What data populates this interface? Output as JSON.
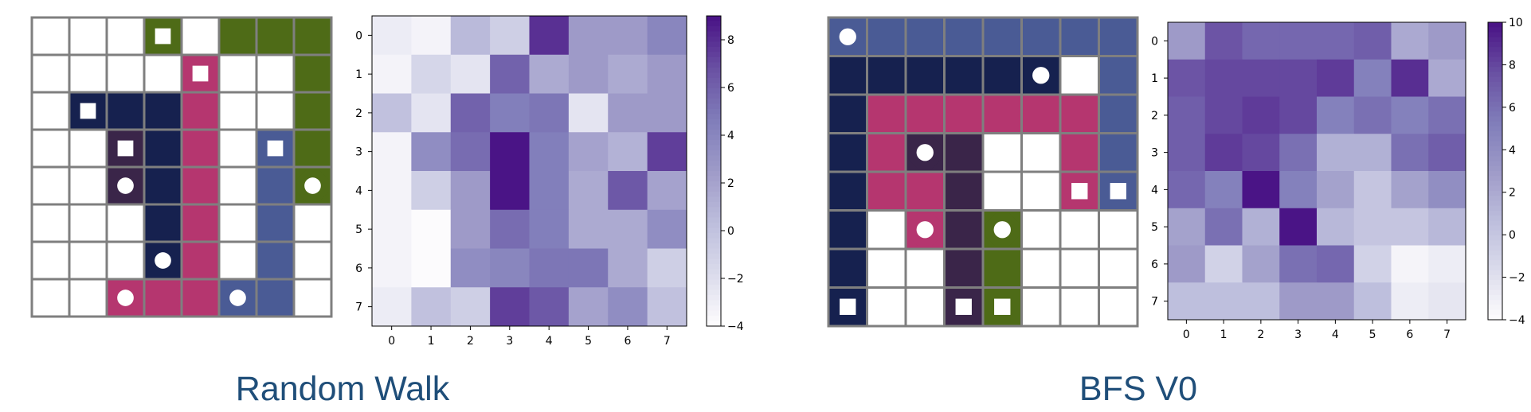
{
  "colors": {
    "empty": "#ffffff",
    "grid_line": "#7f7f7f",
    "title": "#1f4e79",
    "cmap": [
      "#fcfbfd",
      "#dadaeb",
      "#bcbddc",
      "#9e9ac8",
      "#807dba",
      "#6a51a3",
      "#4a1486"
    ]
  },
  "panels": [
    {
      "title": "Random Walk",
      "path_colors": {
        "O": "#4e6b17",
        "M": "#b5366f",
        "N": "#16214f",
        "P": "#3a2549",
        "S": "#4a5b95"
      },
      "grid": [
        "...O.OOO",
        "....M..O",
        ".NNNM..O",
        "..PNM.SO",
        "..PNM.SO",
        "...NM.S.",
        "...NM.S.",
        "..MMMSS."
      ],
      "markers": [
        {
          "row": 0,
          "col": 3,
          "shape": "square",
          "color": "O"
        },
        {
          "row": 1,
          "col": 4,
          "shape": "square",
          "color": "M"
        },
        {
          "row": 2,
          "col": 1,
          "shape": "square",
          "color": "N"
        },
        {
          "row": 3,
          "col": 2,
          "shape": "square",
          "color": "P"
        },
        {
          "row": 3,
          "col": 6,
          "shape": "square",
          "color": "S"
        },
        {
          "row": 4,
          "col": 2,
          "shape": "circle",
          "color": "P"
        },
        {
          "row": 4,
          "col": 7,
          "shape": "circle",
          "color": "O"
        },
        {
          "row": 6,
          "col": 3,
          "shape": "circle",
          "color": "N"
        },
        {
          "row": 7,
          "col": 2,
          "shape": "circle",
          "color": "M"
        },
        {
          "row": 7,
          "col": 5,
          "shape": "circle",
          "color": "S"
        }
      ],
      "heatmap": {
        "x_ticks": [
          "0",
          "1",
          "2",
          "3",
          "4",
          "5",
          "6",
          "7"
        ],
        "y_ticks": [
          "0",
          "1",
          "2",
          "3",
          "4",
          "5",
          "6",
          "7"
        ],
        "colorbar_ticks": [
          "8",
          "6",
          "4",
          "2",
          "0",
          "−2",
          "−4"
        ],
        "vmin": -4,
        "vmax": 9,
        "values": [
          [
            -3.0,
            -3.5,
            0.5,
            -1.0,
            8.0,
            2.5,
            2.5,
            4.0
          ],
          [
            -3.5,
            -1.5,
            -2.5,
            6.0,
            1.5,
            2.5,
            1.5,
            2.5
          ],
          [
            0.0,
            -2.5,
            6.0,
            4.5,
            5.0,
            -2.5,
            2.5,
            2.5
          ],
          [
            -3.5,
            3.5,
            5.5,
            9.0,
            4.5,
            2.0,
            1.0,
            7.5
          ],
          [
            -3.5,
            -1.0,
            2.5,
            9.0,
            4.5,
            1.5,
            6.5,
            2.0
          ],
          [
            -3.5,
            -4.0,
            2.5,
            5.5,
            4.5,
            1.5,
            1.5,
            3.5
          ],
          [
            -3.5,
            -4.0,
            3.5,
            4.0,
            5.0,
            5.0,
            1.5,
            -1.0
          ],
          [
            -3.0,
            0.0,
            -1.0,
            7.5,
            6.5,
            2.0,
            3.5,
            0.0
          ]
        ]
      }
    },
    {
      "title": "BFS V0",
      "path_colors": {
        "S": "#4a5b95",
        "N": "#16214f",
        "M": "#b5366f",
        "P": "#3a2549",
        "O": "#4e6b17"
      },
      "grid": [
        "SSSSSSSS",
        "NNNNNN.S",
        "NMMMMMMS",
        "NMPP..MS",
        "NMMP..MS",
        "N.MPO...",
        "N..PO...",
        "N..PO..."
      ],
      "markers": [
        {
          "row": 0,
          "col": 0,
          "shape": "circle",
          "color": "S"
        },
        {
          "row": 1,
          "col": 5,
          "shape": "circle",
          "color": "N"
        },
        {
          "row": 3,
          "col": 2,
          "shape": "circle",
          "color": "P"
        },
        {
          "row": 4,
          "col": 6,
          "shape": "square",
          "color": "M"
        },
        {
          "row": 4,
          "col": 7,
          "shape": "square",
          "color": "S"
        },
        {
          "row": 5,
          "col": 2,
          "shape": "circle",
          "color": "M"
        },
        {
          "row": 5,
          "col": 4,
          "shape": "circle",
          "color": "O"
        },
        {
          "row": 7,
          "col": 0,
          "shape": "square",
          "color": "N"
        },
        {
          "row": 7,
          "col": 3,
          "shape": "square",
          "color": "P"
        },
        {
          "row": 7,
          "col": 4,
          "shape": "square",
          "color": "O"
        }
      ],
      "heatmap": {
        "x_ticks": [
          "0",
          "1",
          "2",
          "3",
          "4",
          "5",
          "6",
          "7"
        ],
        "y_ticks": [
          "0",
          "1",
          "2",
          "3",
          "4",
          "5",
          "6",
          "7"
        ],
        "colorbar_ticks": [
          "10",
          "8",
          "6",
          "4",
          "2",
          "0",
          "−2",
          "−4"
        ],
        "vmin": -4,
        "vmax": 10,
        "values": [
          [
            3.0,
            7.5,
            6.5,
            6.5,
            6.5,
            7.0,
            2.0,
            3.0
          ],
          [
            7.5,
            8.0,
            8.0,
            8.0,
            8.5,
            5.0,
            9.0,
            2.0
          ],
          [
            7.0,
            8.0,
            8.5,
            8.0,
            5.0,
            6.0,
            5.0,
            6.0
          ],
          [
            7.0,
            8.5,
            8.0,
            6.0,
            1.5,
            1.5,
            6.0,
            7.0
          ],
          [
            6.5,
            5.0,
            10.0,
            5.0,
            2.5,
            0.0,
            2.5,
            4.0
          ],
          [
            2.5,
            6.0,
            1.5,
            10.0,
            1.0,
            0.0,
            0.0,
            1.0
          ],
          [
            3.0,
            -1.0,
            2.5,
            6.0,
            6.5,
            -1.0,
            -3.5,
            -3.0
          ],
          [
            0.5,
            0.5,
            0.5,
            3.0,
            3.0,
            0.5,
            -3.0,
            -2.5
          ]
        ]
      }
    }
  ]
}
